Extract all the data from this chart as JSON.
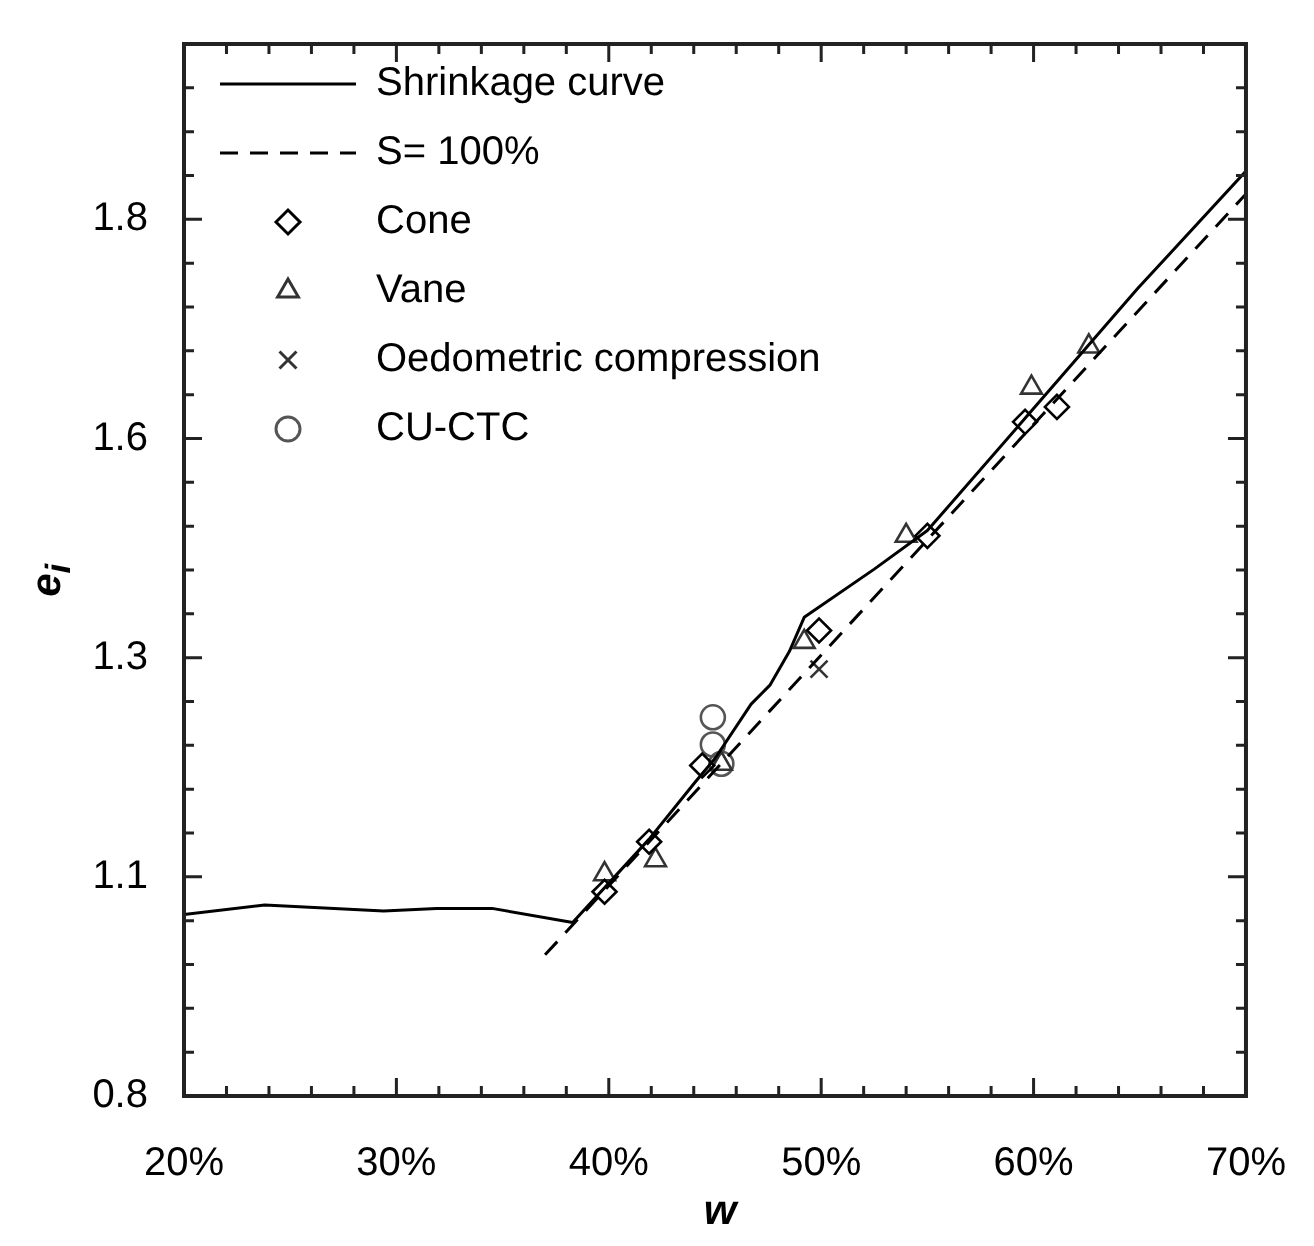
{
  "chart_data": {
    "type": "scatter",
    "xlabel": "w",
    "ylabel": "e$_{i}$",
    "legend": "top left",
    "grid": false,
    "xlim": [
      20,
      70
    ],
    "ylim": [
      0.8,
      2.0
    ],
    "xticks": [
      {
        "value": 20,
        "label": "20%"
      },
      {
        "value": 22,
        "label": null
      },
      {
        "value": 24,
        "label": null
      },
      {
        "value": 26,
        "label": null
      },
      {
        "value": 28,
        "label": null
      },
      {
        "value": 30,
        "label": "30%"
      },
      {
        "value": 32,
        "label": null
      },
      {
        "value": 34,
        "label": null
      },
      {
        "value": 36,
        "label": null
      },
      {
        "value": 38,
        "label": null
      },
      {
        "value": 40,
        "label": "40%"
      },
      {
        "value": 42,
        "label": null
      },
      {
        "value": 44,
        "label": null
      },
      {
        "value": 46,
        "label": null
      },
      {
        "value": 48,
        "label": null
      },
      {
        "value": 50,
        "label": "50%"
      },
      {
        "value": 52,
        "label": null
      },
      {
        "value": 54,
        "label": null
      },
      {
        "value": 56,
        "label": null
      },
      {
        "value": 58,
        "label": null
      },
      {
        "value": 60,
        "label": "60%"
      },
      {
        "value": 62,
        "label": null
      },
      {
        "value": 64,
        "label": null
      },
      {
        "value": 66,
        "label": null
      },
      {
        "value": 68,
        "label": null
      },
      {
        "value": 70,
        "label": "70%"
      }
    ],
    "yticks": [
      0.8,
      {
        "value": 0.85,
        "label": null
      },
      {
        "value": 0.9,
        "label": null
      },
      {
        "value": 0.95,
        "label": null
      },
      {
        "value": 1.0,
        "label": null
      },
      {
        "value": 1.05,
        "label": "1.1"
      },
      {
        "value": 1.1,
        "label": null
      },
      {
        "value": 1.15,
        "label": null
      },
      {
        "value": 1.2,
        "label": null
      },
      {
        "value": 1.25,
        "label": null
      },
      1.3,
      {
        "value": 1.35,
        "label": null
      },
      {
        "value": 1.4,
        "label": null
      },
      {
        "value": 1.45,
        "label": null
      },
      {
        "value": 1.5,
        "label": null
      },
      {
        "value": 1.55,
        "label": "1.6"
      },
      {
        "value": 1.6,
        "label": null
      },
      {
        "value": 1.65,
        "label": null
      },
      {
        "value": 1.7,
        "label": null
      },
      {
        "value": 1.75,
        "label": null
      },
      1.8,
      {
        "value": 1.85,
        "label": null
      },
      {
        "value": 1.9,
        "label": null
      },
      {
        "value": 1.95,
        "label": null
      },
      {
        "value": 2.0,
        "label": null
      }
    ],
    "series": [
      {
        "name": "Shrinkage curve",
        "type": "line",
        "line_style": "solid",
        "marker": "none",
        "color": "#000000",
        "x": [
          20,
          23.8,
          29.4,
          31.9,
          34.5,
          38.3,
          41.9,
          44.1,
          45.0,
          46.7,
          47.6,
          48.5,
          49.2,
          52.5,
          55.0,
          59.6,
          64.9,
          70
        ],
        "values": [
          1.007,
          1.018,
          1.011,
          1.014,
          1.014,
          0.998,
          1.093,
          1.159,
          1.185,
          1.247,
          1.269,
          1.307,
          1.346,
          1.401,
          1.445,
          1.573,
          1.721,
          1.855
        ]
      },
      {
        "name": "S= 100%",
        "type": "line",
        "line_style": "dashed",
        "marker": "none",
        "color": "#000000",
        "x": [
          37.0,
          70
        ],
        "values": [
          0.961,
          1.829
        ]
      },
      {
        "name": "Cone",
        "marker": "diamond",
        "color": "#000000",
        "x": [
          39.8,
          41.9,
          44.4,
          49.9,
          55.0,
          59.6,
          61.1
        ],
        "values": [
          1.033,
          1.09,
          1.177,
          1.331,
          1.439,
          1.569,
          1.586
        ]
      },
      {
        "name": "Vane",
        "marker": "triangle",
        "color": "#333333",
        "x": [
          39.8,
          42.2,
          45.3,
          49.2,
          54.0,
          59.9,
          62.6
        ],
        "values": [
          1.053,
          1.069,
          1.179,
          1.318,
          1.439,
          1.608,
          1.655
        ]
      },
      {
        "name": "Oedometric compression",
        "marker": "cross",
        "color": "#333333",
        "x": [
          49.9
        ],
        "values": [
          1.287
        ]
      },
      {
        "name": "CU-CTC",
        "marker": "circle",
        "color": "#555555",
        "x": [
          44.9,
          44.9,
          45.3
        ],
        "values": [
          1.232,
          1.201,
          1.179
        ]
      }
    ]
  }
}
